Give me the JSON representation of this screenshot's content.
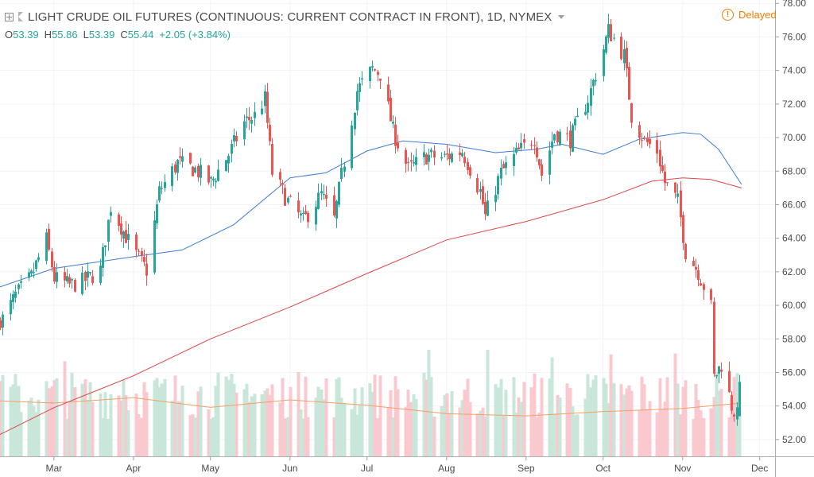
{
  "header": {
    "title": "LIGHT CRUDE OIL FUTURES (CONTINUOUS: CURRENT CONTRACT IN FRONT), 1D, NYMEX",
    "ohlc": {
      "o_label": "O",
      "o": "53.39",
      "h_label": "H",
      "h": "55.86",
      "l_label": "L",
      "l": "53.39",
      "c_label": "C",
      "c": "55.44",
      "change": "+2.05 (+3.84%)"
    },
    "status": "Delayed",
    "status_icon": "exclamation-circle-icon"
  },
  "colors": {
    "up": "#26a69a",
    "down": "#ef5350",
    "volume_up": "#c8e6d9",
    "volume_down": "#f9c9cf",
    "ma_short": "#3d7bd6",
    "ma_long": "#e04545",
    "ma_volume": "#f5a066",
    "status": "#f57c00"
  },
  "chart_data": {
    "type": "candlestick",
    "x_range": [
      "2018-02-08",
      "2018-12-07"
    ],
    "x_tick_labels": [
      {
        "label": "Mar",
        "date": "2018-03-01"
      },
      {
        "label": "Apr",
        "date": "2018-04-01"
      },
      {
        "label": "May",
        "date": "2018-05-01"
      },
      {
        "label": "Jun",
        "date": "2018-06-01"
      },
      {
        "label": "Jul",
        "date": "2018-07-01"
      },
      {
        "label": "Aug",
        "date": "2018-08-01"
      },
      {
        "label": "Sep",
        "date": "2018-09-01"
      },
      {
        "label": "Oct",
        "date": "2018-10-01"
      },
      {
        "label": "Nov",
        "date": "2018-11-01"
      },
      {
        "label": "Dec",
        "date": "2018-12-01"
      }
    ],
    "ylim": [
      51,
      78.2
    ],
    "y_ticks": [
      "52.00",
      "54.00",
      "56.00",
      "58.00",
      "60.00",
      "62.00",
      "64.00",
      "66.00",
      "68.00",
      "70.00",
      "72.00",
      "74.00",
      "76.00",
      "78.00"
    ],
    "close_path": [
      [
        "2018-02-09",
        59.2
      ],
      [
        "2018-02-14",
        60.6
      ],
      [
        "2018-02-20",
        61.7
      ],
      [
        "2018-02-26",
        63.9
      ],
      [
        "2018-03-01",
        61.6
      ],
      [
        "2018-03-07",
        61.2
      ],
      [
        "2018-03-12",
        61.4
      ],
      [
        "2018-03-19",
        62.1
      ],
      [
        "2018-03-23",
        65.9
      ],
      [
        "2018-03-28",
        64.4
      ],
      [
        "2018-04-02",
        63.0
      ],
      [
        "2018-04-06",
        62.1
      ],
      [
        "2018-04-11",
        66.8
      ],
      [
        "2018-04-18",
        68.5
      ],
      [
        "2018-04-25",
        68.1
      ],
      [
        "2018-05-01",
        67.3
      ],
      [
        "2018-05-08",
        69.0
      ],
      [
        "2018-05-14",
        70.9
      ],
      [
        "2018-05-18",
        71.3
      ],
      [
        "2018-05-22",
        72.3
      ],
      [
        "2018-05-25",
        67.9
      ],
      [
        "2018-05-31",
        66.2
      ],
      [
        "2018-06-06",
        65.0
      ],
      [
        "2018-06-13",
        66.6
      ],
      [
        "2018-06-18",
        65.1
      ],
      [
        "2018-06-22",
        68.6
      ],
      [
        "2018-06-27",
        72.8
      ],
      [
        "2018-07-03",
        74.1
      ],
      [
        "2018-07-06",
        73.8
      ],
      [
        "2018-07-11",
        70.4
      ],
      [
        "2018-07-17",
        68.1
      ],
      [
        "2018-07-24",
        68.9
      ],
      [
        "2018-07-31",
        68.8
      ],
      [
        "2018-08-07",
        69.2
      ],
      [
        "2018-08-14",
        66.8
      ],
      [
        "2018-08-16",
        65.3
      ],
      [
        "2018-08-22",
        67.9
      ],
      [
        "2018-08-28",
        69.0
      ],
      [
        "2018-09-04",
        70.0
      ],
      [
        "2018-09-07",
        67.8
      ],
      [
        "2018-09-12",
        70.3
      ],
      [
        "2018-09-18",
        69.9
      ],
      [
        "2018-09-25",
        72.3
      ],
      [
        "2018-10-01",
        75.3
      ],
      [
        "2018-10-03",
        76.4
      ],
      [
        "2018-10-09",
        74.9
      ],
      [
        "2018-10-12",
        71.3
      ],
      [
        "2018-10-17",
        69.8
      ],
      [
        "2018-10-22",
        69.2
      ],
      [
        "2018-10-25",
        67.3
      ],
      [
        "2018-10-30",
        66.2
      ],
      [
        "2018-11-02",
        63.2
      ],
      [
        "2018-11-07",
        62.0
      ],
      [
        "2018-11-12",
        59.9
      ],
      [
        "2018-11-13",
        55.7
      ],
      [
        "2018-11-16",
        56.5
      ],
      [
        "2018-11-20",
        54.0
      ],
      [
        "2018-11-22",
        53.4
      ],
      [
        "2018-11-23",
        55.4
      ]
    ],
    "last_candle": {
      "date": "2018-11-23",
      "open": 53.39,
      "high": 55.86,
      "low": 53.39,
      "close": 55.44
    },
    "series": [
      {
        "kind": "moving_average_short",
        "color": "#3d7bd6",
        "points": [
          [
            "2018-02-08",
            61.1
          ],
          [
            "2018-03-01",
            62.2
          ],
          [
            "2018-04-01",
            62.9
          ],
          [
            "2018-04-20",
            63.3
          ],
          [
            "2018-05-10",
            64.8
          ],
          [
            "2018-06-01",
            67.6
          ],
          [
            "2018-06-15",
            67.9
          ],
          [
            "2018-07-01",
            69.2
          ],
          [
            "2018-07-15",
            69.8
          ],
          [
            "2018-08-01",
            69.6
          ],
          [
            "2018-08-20",
            69.1
          ],
          [
            "2018-09-05",
            69.3
          ],
          [
            "2018-09-15",
            69.6
          ],
          [
            "2018-10-01",
            69.0
          ],
          [
            "2018-10-15",
            69.9
          ],
          [
            "2018-11-01",
            70.3
          ],
          [
            "2018-11-08",
            70.2
          ],
          [
            "2018-11-15",
            69.3
          ],
          [
            "2018-11-24",
            67.2
          ]
        ]
      },
      {
        "kind": "moving_average_long",
        "color": "#e04545",
        "points": [
          [
            "2018-02-08",
            52.3
          ],
          [
            "2018-03-01",
            53.9
          ],
          [
            "2018-04-01",
            55.8
          ],
          [
            "2018-05-01",
            58.0
          ],
          [
            "2018-06-01",
            59.9
          ],
          [
            "2018-07-01",
            61.9
          ],
          [
            "2018-08-01",
            63.9
          ],
          [
            "2018-09-01",
            65.0
          ],
          [
            "2018-10-01",
            66.3
          ],
          [
            "2018-10-20",
            67.4
          ],
          [
            "2018-11-01",
            67.6
          ],
          [
            "2018-11-12",
            67.5
          ],
          [
            "2018-11-24",
            67.0
          ]
        ]
      }
    ],
    "volume": {
      "relative_height_range": [
        0,
        1
      ],
      "moving_average": [
        [
          "2018-02-08",
          0.52
        ],
        [
          "2018-03-01",
          0.5
        ],
        [
          "2018-04-01",
          0.55
        ],
        [
          "2018-05-01",
          0.46
        ],
        [
          "2018-06-01",
          0.53
        ],
        [
          "2018-07-01",
          0.48
        ],
        [
          "2018-08-01",
          0.4
        ],
        [
          "2018-09-01",
          0.38
        ],
        [
          "2018-10-01",
          0.42
        ],
        [
          "2018-11-01",
          0.45
        ],
        [
          "2018-11-24",
          0.5
        ]
      ]
    }
  }
}
